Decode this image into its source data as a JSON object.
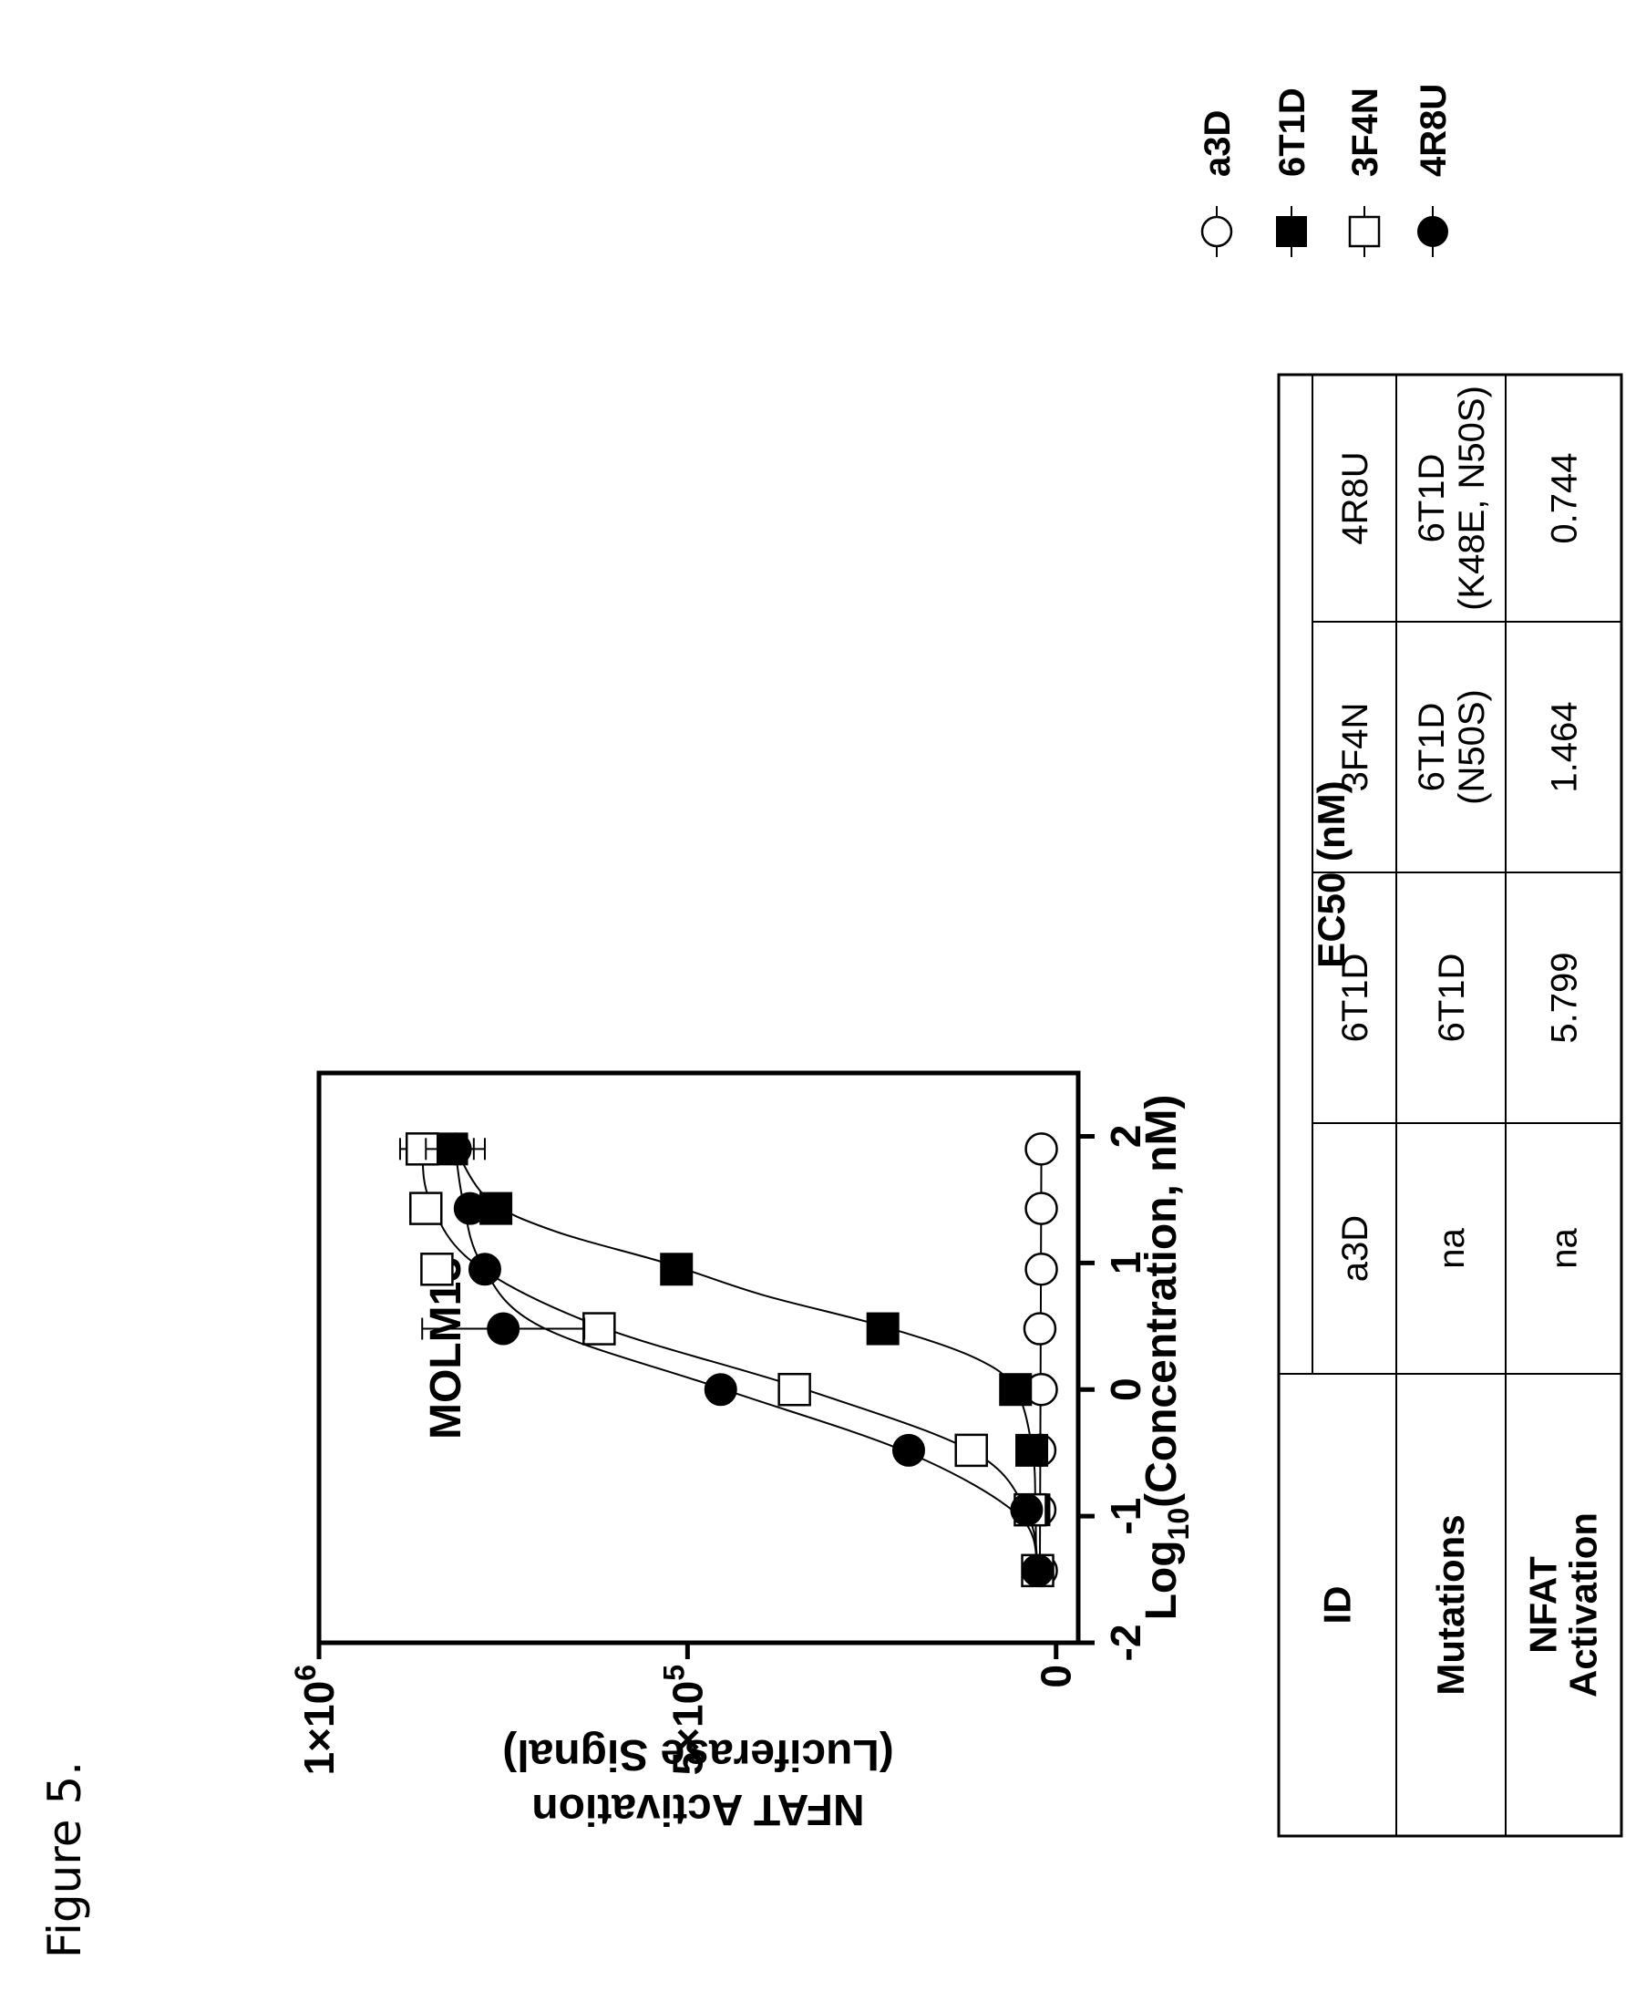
{
  "figure_label": "Figure 5.",
  "chart_data": {
    "type": "scatter",
    "title": "MOLM13",
    "xlabel_main": "Log",
    "xlabel_sub": "10",
    "xlabel_rest": "(Concentration, nM)",
    "ylabel_line1": "NFAT Activation",
    "ylabel_line2": "(Luciferase Signal)",
    "xlim": [
      -2,
      2.5
    ],
    "ylim": [
      -30000,
      1000000
    ],
    "xticks": [
      -2,
      -1,
      0,
      1,
      2
    ],
    "xtick_labels": [
      "-2",
      "-1",
      "0",
      "1",
      "2"
    ],
    "yticks": [
      0,
      500000,
      1000000
    ],
    "ytick_labels": [
      "0",
      "5×10",
      "1×10"
    ],
    "ytick_sups": [
      "",
      "5",
      "6"
    ],
    "series": [
      {
        "name": "a3D",
        "marker": "circle-open",
        "x": [
          -1.43,
          -0.95,
          -0.48,
          0,
          0.48,
          0.95,
          1.43,
          1.9
        ],
        "y": [
          20000,
          22000,
          22000,
          20000,
          22000,
          20000,
          20000,
          20000
        ],
        "err": [
          0,
          0,
          0,
          0,
          0,
          0,
          0,
          0
        ],
        "fit": [
          [
            -1.43,
            22000
          ],
          [
            1.9,
            20000
          ]
        ]
      },
      {
        "name": "6T1D",
        "marker": "square-filled",
        "x": [
          -1.43,
          -0.95,
          -0.48,
          0,
          0.48,
          0.95,
          1.43,
          1.9
        ],
        "y": [
          25000,
          30000,
          33000,
          55000,
          235000,
          515000,
          760000,
          820000
        ],
        "err": [
          0,
          0,
          0,
          0,
          0,
          15000,
          0,
          30000
        ],
        "fit": [
          [
            -1.43,
            27000
          ],
          [
            -0.95,
            28000
          ],
          [
            -0.48,
            32000
          ],
          [
            0,
            55000
          ],
          [
            0.25,
            110000
          ],
          [
            0.5,
            235000
          ],
          [
            0.75,
            400000
          ],
          [
            1.0,
            530000
          ],
          [
            1.25,
            680000
          ],
          [
            1.5,
            770000
          ],
          [
            1.9,
            815000
          ]
        ]
      },
      {
        "name": "3F4N",
        "marker": "square-open",
        "x": [
          -1.43,
          -0.95,
          -0.48,
          0,
          0.48,
          0.95,
          1.43,
          1.9
        ],
        "y": [
          25000,
          35000,
          115000,
          355000,
          620000,
          840000,
          855000,
          860000
        ],
        "err": [
          0,
          0,
          0,
          0,
          0,
          0,
          0,
          30000
        ],
        "fit": [
          [
            -1.43,
            25000
          ],
          [
            -1.0,
            38000
          ],
          [
            -0.5,
            110000
          ],
          [
            0,
            340000
          ],
          [
            0.5,
            620000
          ],
          [
            1.0,
            790000
          ],
          [
            1.5,
            850000
          ],
          [
            1.9,
            860000
          ]
        ]
      },
      {
        "name": "4R8U",
        "marker": "circle-filled",
        "x": [
          -1.43,
          -0.95,
          -0.48,
          0,
          0.48,
          0.95,
          1.43,
          1.9
        ],
        "y": [
          25000,
          40000,
          200000,
          455000,
          750000,
          775000,
          795000,
          815000
        ],
        "err": [
          0,
          0,
          0,
          0,
          110000,
          0,
          0,
          40000
        ],
        "fit": [
          [
            -1.43,
            25000
          ],
          [
            -1.0,
            50000
          ],
          [
            -0.5,
            200000
          ],
          [
            0,
            450000
          ],
          [
            0.5,
            700000
          ],
          [
            1.0,
            780000
          ],
          [
            1.5,
            805000
          ],
          [
            1.9,
            815000
          ]
        ]
      }
    ],
    "legend": [
      "a3D",
      "6T1D",
      "3F4N",
      "4R8U"
    ]
  },
  "table": {
    "header": "EC50 (nM)",
    "rows": [
      {
        "label": "ID",
        "cells": [
          "a3D",
          "6T1D",
          "3F4N",
          "4R8U"
        ]
      },
      {
        "label": "Mutations",
        "cells": [
          "na",
          "6T1D",
          "6T1D (N50S)",
          "6T1D (K48E, N50S)"
        ]
      },
      {
        "label": "NFAT Activation",
        "cells": [
          "na",
          "5.799",
          "1.464",
          "0.744"
        ]
      }
    ]
  }
}
